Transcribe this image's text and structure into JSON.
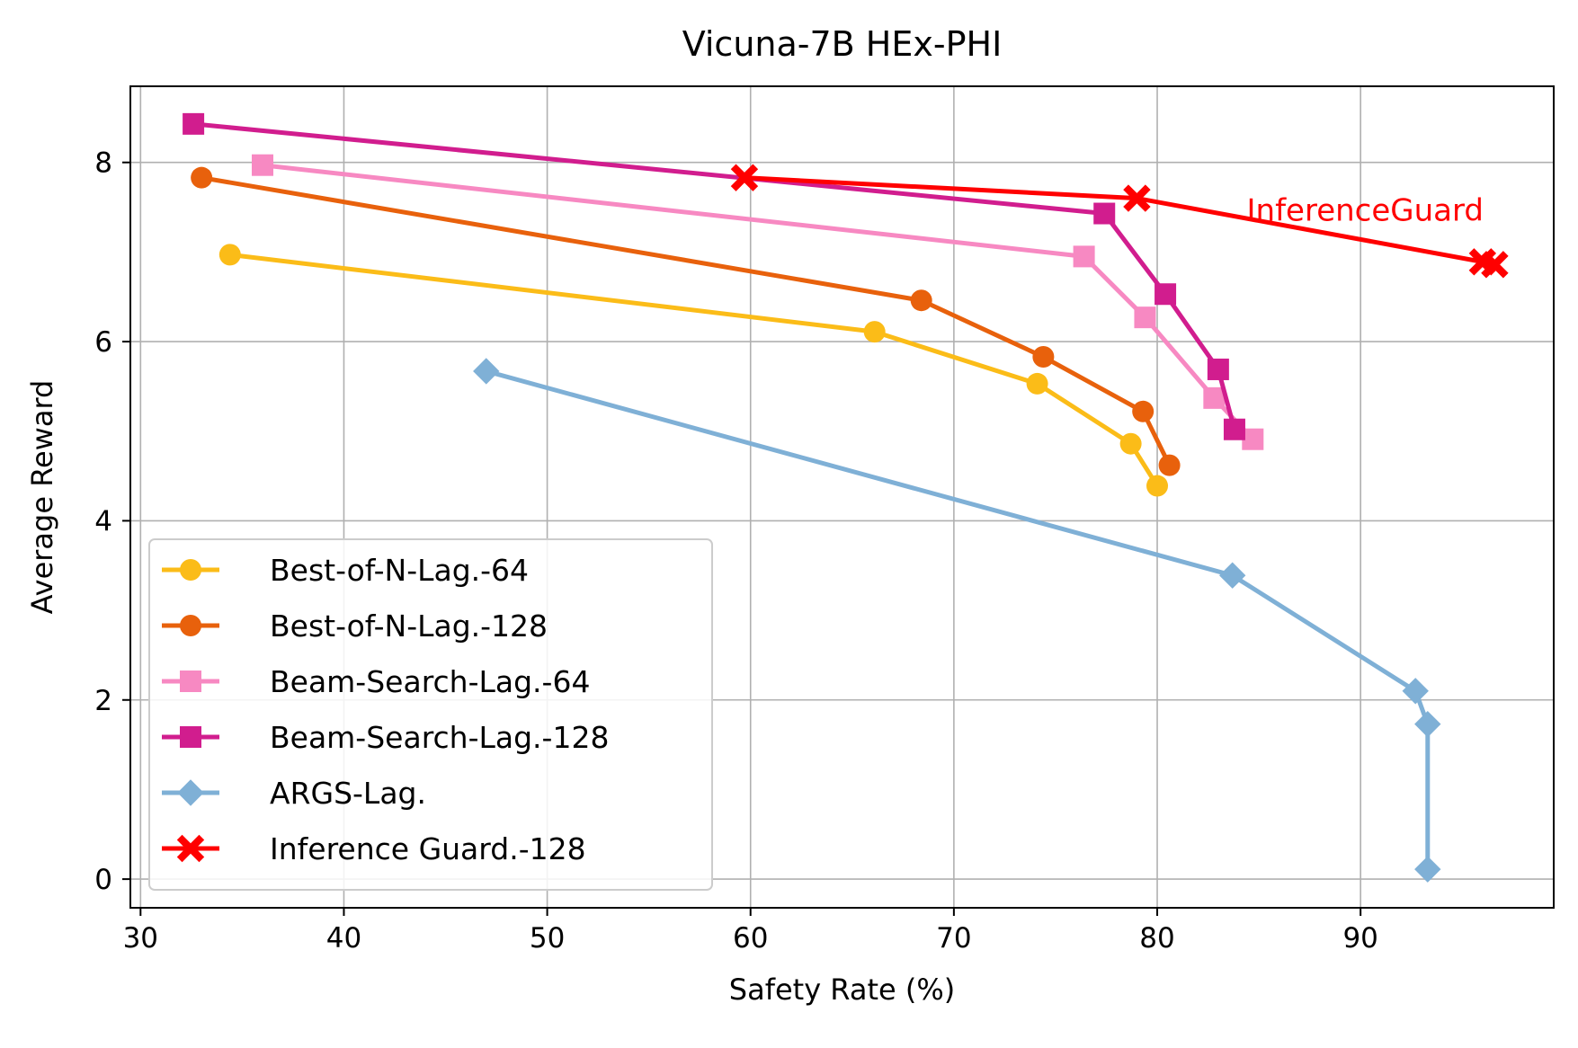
{
  "chart_data": {
    "type": "line",
    "title": "Vicuna-7B HEx-PHI",
    "xlabel": "Safety Rate (%)",
    "ylabel": "Average Reward",
    "xlim": [
      29.5,
      99.5
    ],
    "ylim": [
      -0.32,
      8.85
    ],
    "xticks": [
      30,
      40,
      50,
      60,
      70,
      80,
      90
    ],
    "yticks": [
      0,
      2,
      4,
      6,
      8
    ],
    "grid": true,
    "legend_position": "lower-left",
    "series": [
      {
        "name": "Best-of-N-Lag.-64",
        "color": "#fbbc18",
        "marker": "circle",
        "x": [
          34.4,
          66.1,
          74.1,
          78.7,
          80.0
        ],
        "y": [
          6.97,
          6.11,
          5.53,
          4.86,
          4.39
        ]
      },
      {
        "name": "Best-of-N-Lag.-128",
        "color": "#e8610c",
        "marker": "circle",
        "x": [
          33.0,
          68.4,
          74.4,
          79.3,
          80.6
        ],
        "y": [
          7.83,
          6.46,
          5.83,
          5.22,
          4.62
        ]
      },
      {
        "name": "Beam-Search-Lag.-64",
        "color": "#f789c2",
        "marker": "square",
        "x": [
          36.0,
          76.4,
          79.4,
          82.8,
          84.7
        ],
        "y": [
          7.97,
          6.95,
          6.27,
          5.37,
          4.91
        ]
      },
      {
        "name": "Beam-Search-Lag.-128",
        "color": "#d11d8e",
        "marker": "square",
        "x": [
          32.6,
          77.4,
          80.4,
          83.0,
          83.8
        ],
        "y": [
          8.43,
          7.43,
          6.53,
          5.69,
          5.02
        ]
      },
      {
        "name": "ARGS-Lag.",
        "color": "#7fb0d6",
        "marker": "diamond",
        "x": [
          47.0,
          83.7,
          92.7,
          93.3,
          93.3
        ],
        "y": [
          5.67,
          3.39,
          2.1,
          1.73,
          0.11
        ]
      },
      {
        "name": "Inference Guard.-128",
        "color": "#ff0000",
        "marker": "x",
        "x": [
          59.7,
          79.0,
          96.0,
          96.6
        ],
        "y": [
          7.83,
          7.6,
          6.89,
          6.86
        ]
      }
    ],
    "annotations": [
      {
        "text": "InferenceGuard",
        "x": 84.4,
        "y": 7.35,
        "color": "#ff0000"
      }
    ]
  }
}
